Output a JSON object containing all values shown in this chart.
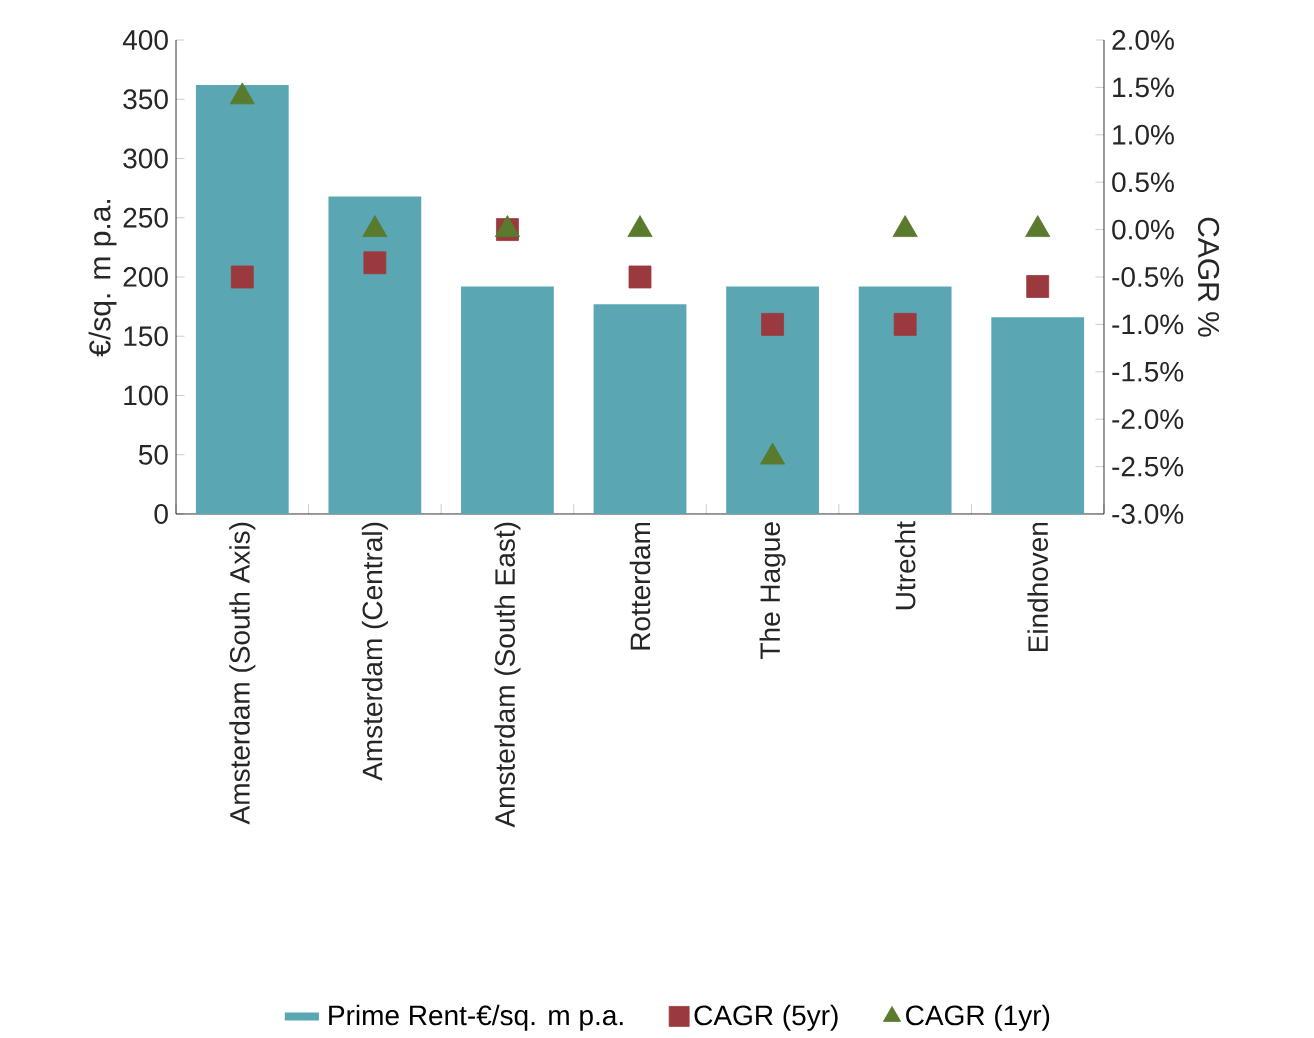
{
  "chart_data": {
    "type": "bar",
    "categories": [
      "Amsterdam (South Axis)",
      "Amsterdam (Central)",
      "Amsterdam (South East)",
      "Rotterdam",
      "The Hague",
      "Utrecht",
      "Eindhoven"
    ],
    "series": [
      {
        "name": "Prime Rent-€/sq. m p.a.",
        "color": "#5aa7b3",
        "values": [
          362,
          268,
          192,
          177,
          192,
          192,
          166
        ]
      },
      {
        "name": "CAGR (5yr)",
        "type": "scatter",
        "axis": "y2",
        "marker": "square",
        "color": "#9b3a3e",
        "values": [
          -0.5,
          -0.35,
          0.0,
          -0.5,
          -1.0,
          -1.0,
          -0.6
        ]
      },
      {
        "name": "CAGR (1yr)",
        "type": "scatter",
        "axis": "y2",
        "marker": "triangle",
        "color": "#5a7a2e",
        "values": [
          1.4,
          0.0,
          0.0,
          0.0,
          -2.4,
          0.0,
          0.0
        ]
      }
    ],
    "ylabel": "€/sq. m p.a.",
    "y2label": "CAGR %",
    "ylim": [
      0,
      400
    ],
    "yticks": [
      0,
      50,
      100,
      150,
      200,
      250,
      300,
      350,
      400
    ],
    "y2lim": [
      -3,
      2
    ],
    "y2ticks": [
      {
        "value": 2,
        "label": "2.0%"
      },
      {
        "value": 1.5,
        "label": "1.5%"
      },
      {
        "value": 1,
        "label": "1.0%"
      },
      {
        "value": 0.5,
        "label": "0.5%"
      },
      {
        "value": 0,
        "label": "0.0%"
      },
      {
        "value": -0.5,
        "label": "-0.5%"
      },
      {
        "value": -1,
        "label": "-1.0%"
      },
      {
        "value": -1.5,
        "label": "-1.5%"
      },
      {
        "value": -2,
        "label": "-2.0%"
      },
      {
        "value": -2.5,
        "label": "-2.5%"
      },
      {
        "value": -3,
        "label": "-3.0%"
      }
    ],
    "legend": "bottom",
    "grid": false
  }
}
